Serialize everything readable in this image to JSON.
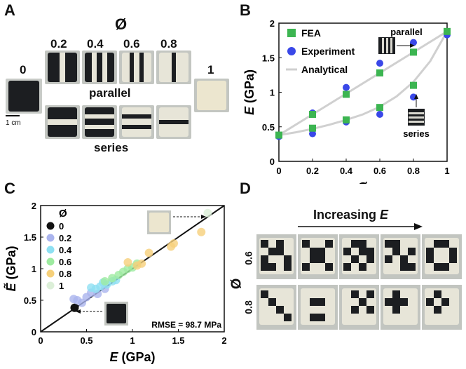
{
  "panels": {
    "a": {
      "letter": "A",
      "phi_symbol": "Ø",
      "fraction_labels": [
        "0",
        "0.2",
        "0.4",
        "0.6",
        "0.8",
        "1"
      ],
      "row_labels": {
        "parallel": "parallel",
        "series": "series"
      },
      "scale_bar": "1 cm"
    },
    "b": {
      "letter": "B"
    },
    "c": {
      "letter": "C"
    },
    "d": {
      "letter": "D",
      "arrow_label_prefix": "Increasing ",
      "arrow_label_var": "E",
      "row_labels": [
        "0.6",
        "0.8"
      ],
      "phi_symbol": "Ø"
    }
  },
  "colors": {
    "fea": "#3cb551",
    "experiment": "#3a48e8",
    "analytical": "#d0d0d0",
    "phi_0": "#111111",
    "phi_0.2": "#aab4ee",
    "phi_0.4": "#8ee0f2",
    "phi_0.6": "#9eeba0",
    "phi_0.8": "#f6d07a",
    "phi_1": "#dcefd8",
    "photo_dark": "#1c1e21",
    "photo_light": "#e7e5d8"
  },
  "chart_data": [
    {
      "type": "scatter",
      "id": "B",
      "xlabel": "Ø",
      "ylabel_var": "E",
      "ylabel_unit": "(GPa)",
      "xlim": [
        0,
        1
      ],
      "ylim": [
        0,
        2
      ],
      "xticks": [
        "0",
        "0.2",
        "0.4",
        "0.6",
        "0.8",
        "1"
      ],
      "yticks": [
        "0",
        "0.5",
        "1",
        "1.5",
        "2"
      ],
      "legend": [
        "FEA",
        "Experiment",
        "Analytical"
      ],
      "inset_labels": {
        "parallel": "parallel",
        "series": "series"
      },
      "series": [
        {
          "name": "FEA",
          "marker": "square",
          "x": [
            0,
            0.2,
            0.2,
            0.4,
            0.4,
            0.6,
            0.6,
            0.8,
            0.8,
            1
          ],
          "y": [
            0.38,
            0.68,
            0.48,
            0.97,
            0.6,
            1.28,
            0.78,
            1.58,
            1.1,
            1.88
          ]
        },
        {
          "name": "Experiment",
          "marker": "circle",
          "x": [
            0,
            0.2,
            0.2,
            0.4,
            0.4,
            0.6,
            0.6,
            0.8,
            0.8,
            1
          ],
          "y": [
            0.36,
            0.7,
            0.4,
            1.07,
            0.57,
            1.42,
            0.68,
            1.72,
            0.93,
            1.83
          ]
        },
        {
          "name": "Analytical parallel",
          "line": true,
          "x": [
            0,
            0.2,
            0.4,
            0.6,
            0.8,
            1
          ],
          "y": [
            0.38,
            0.68,
            0.98,
            1.28,
            1.58,
            1.88
          ]
        },
        {
          "name": "Analytical series",
          "line": true,
          "x": [
            0,
            0.1,
            0.2,
            0.3,
            0.4,
            0.5,
            0.6,
            0.7,
            0.8,
            0.9,
            1
          ],
          "y": [
            0.38,
            0.42,
            0.47,
            0.53,
            0.6,
            0.68,
            0.79,
            0.94,
            1.15,
            1.45,
            1.88
          ]
        }
      ]
    },
    {
      "type": "scatter",
      "id": "C",
      "xlabel_var": "E",
      "xlabel_unit": "(GPa)",
      "ylabel_var": "Ẽ",
      "ylabel_unit": "(GPa)",
      "xlim": [
        0,
        2
      ],
      "ylim": [
        0,
        2
      ],
      "xticks": [
        "0",
        "0.5",
        "1",
        "1.5",
        "2"
      ],
      "yticks": [
        "0",
        "0.5",
        "1",
        "1.5",
        "2"
      ],
      "legend_title": "Ø",
      "legend": [
        "0",
        "0.2",
        "0.4",
        "0.6",
        "0.8",
        "1"
      ],
      "annotation": "RMSE = 98.7 MPa",
      "reference_line": {
        "x": [
          0,
          2
        ],
        "y": [
          0,
          2
        ]
      },
      "series": [
        {
          "name": "0",
          "x": [
            0.37
          ],
          "y": [
            0.38
          ]
        },
        {
          "name": "0.2",
          "x": [
            0.36,
            0.4,
            0.45,
            0.5,
            0.55,
            0.62,
            0.7
          ],
          "y": [
            0.52,
            0.5,
            0.46,
            0.55,
            0.62,
            0.6,
            0.68
          ]
        },
        {
          "name": "0.4",
          "x": [
            0.55,
            0.6,
            0.65,
            0.68,
            0.72,
            0.78,
            0.82
          ],
          "y": [
            0.7,
            0.68,
            0.72,
            0.78,
            0.75,
            0.8,
            0.82
          ]
        },
        {
          "name": "0.6",
          "x": [
            0.7,
            0.78,
            0.85,
            0.9,
            0.95,
            1.0,
            1.05
          ],
          "y": [
            0.8,
            0.85,
            0.9,
            0.95,
            1.0,
            1.02,
            1.08
          ]
        },
        {
          "name": "0.8",
          "x": [
            0.95,
            1.05,
            1.1,
            1.18,
            1.42,
            1.45,
            1.75
          ],
          "y": [
            1.1,
            1.05,
            1.08,
            1.25,
            1.35,
            1.4,
            1.58
          ]
        },
        {
          "name": "1",
          "x": [
            1.82
          ],
          "y": [
            1.88
          ]
        }
      ]
    }
  ]
}
